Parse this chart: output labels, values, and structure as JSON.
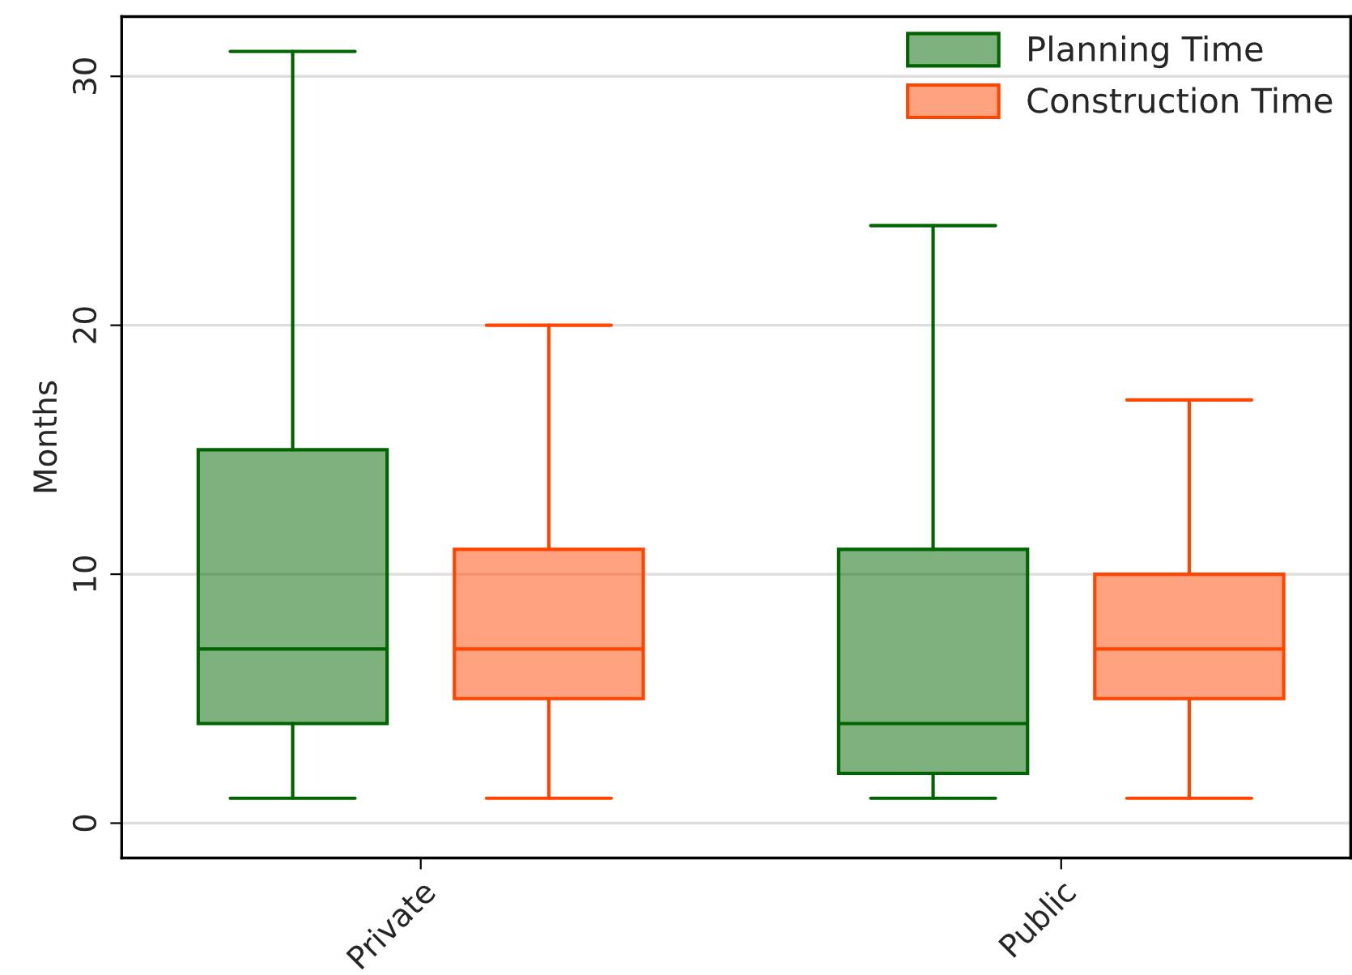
{
  "chart_data": {
    "type": "box",
    "ylabel": "Months",
    "categories": [
      "Private",
      "Public"
    ],
    "series": [
      {
        "name": "Planning Time",
        "color": "#006400",
        "boxes": [
          {
            "low": 1,
            "q1": 4,
            "median": 7,
            "q3": 15,
            "high": 31
          },
          {
            "low": 1,
            "q1": 2,
            "median": 4,
            "q3": 11,
            "high": 24
          }
        ]
      },
      {
        "name": "Construction Time",
        "color": "#ff4500",
        "boxes": [
          {
            "low": 1,
            "q1": 5,
            "median": 7,
            "q3": 11,
            "high": 20
          },
          {
            "low": 1,
            "q1": 5,
            "median": 7,
            "q3": 10,
            "high": 17
          }
        ]
      }
    ],
    "ylim": [
      -1.4,
      32.4
    ],
    "yticks": [
      0,
      10,
      20,
      30
    ],
    "grid": "y",
    "legend": "top right"
  }
}
